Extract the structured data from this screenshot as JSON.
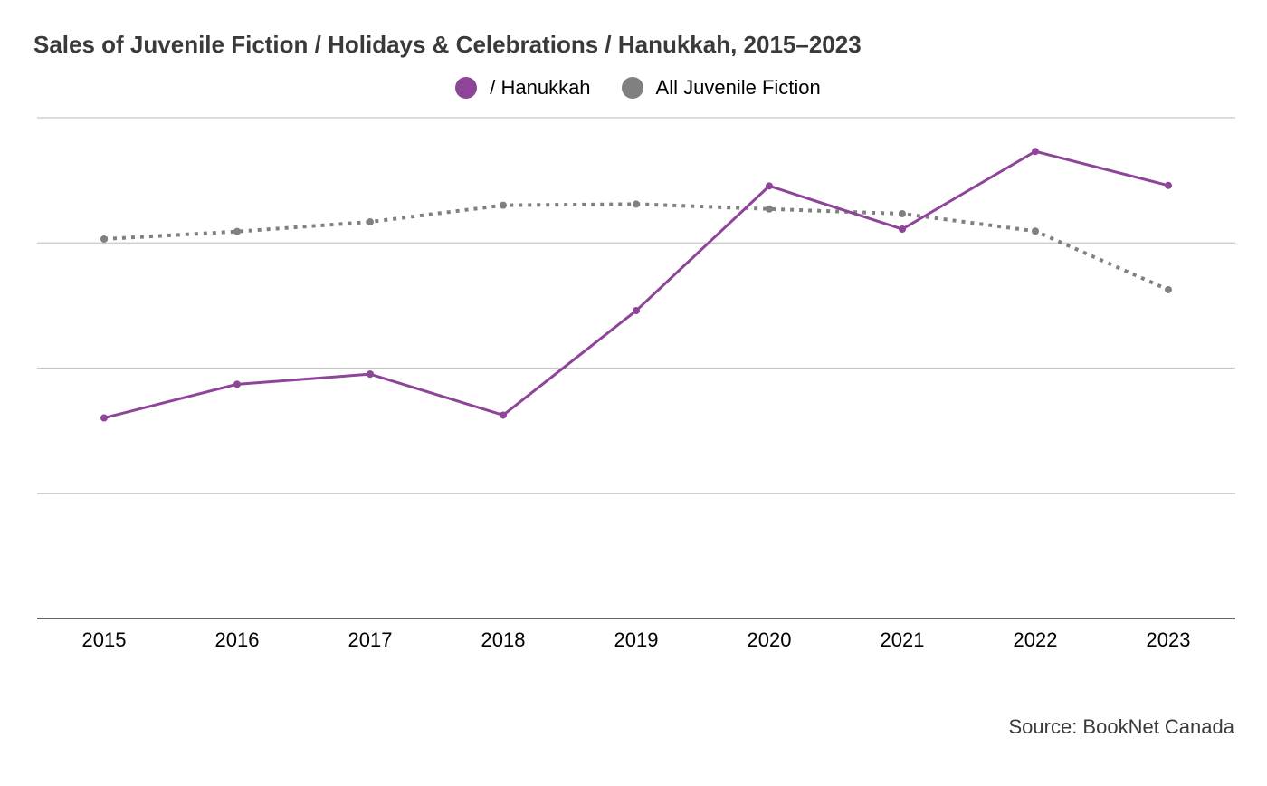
{
  "chart_data": {
    "type": "line",
    "title": "Sales of Juvenile Fiction / Holidays & Celebrations / Hanukkah, 2015–2023",
    "categories": [
      "2015",
      "2016",
      "2017",
      "2018",
      "2019",
      "2020",
      "2021",
      "2022",
      "2023"
    ],
    "series": [
      {
        "name": "/ Hanukkah",
        "color": "#8e4499",
        "style": "solid",
        "values": [
          0.602,
          0.871,
          0.952,
          0.624,
          1.459,
          2.455,
          2.11,
          2.731,
          2.459
        ]
      },
      {
        "name": "All Juvenile Fiction",
        "color": "#808080",
        "style": "dotted",
        "values": [
          2.031,
          2.091,
          2.168,
          2.301,
          2.31,
          2.271,
          2.233,
          2.094,
          1.626
        ]
      }
    ],
    "ylim": [
      -1,
      3
    ],
    "yticks": [
      -1,
      0,
      1,
      2,
      3
    ],
    "y_tick_labels_shown": false,
    "grid": true,
    "legend_position": "top-center",
    "xlabel": "",
    "ylabel": ""
  },
  "source": "Source: BookNet Canada"
}
